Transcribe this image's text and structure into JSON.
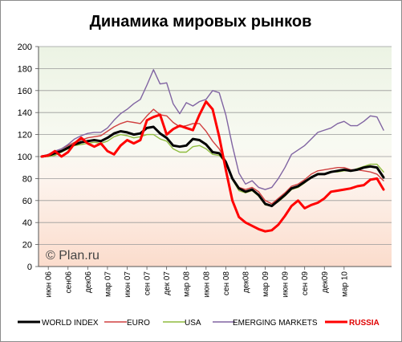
{
  "chart_data": {
    "type": "line",
    "title": "Динамика мировых рынков",
    "watermark": "© Plan.ru",
    "ylim": [
      0,
      200
    ],
    "yticks": [
      0,
      20,
      40,
      60,
      80,
      100,
      120,
      140,
      160,
      180,
      200
    ],
    "xtick_labels": [
      "июн 06",
      "сен06",
      "дек06",
      "мар 07",
      "июн 07",
      "сен 07",
      "дек 07",
      "мар 08",
      "июн 08",
      "сен 08",
      "дек08",
      "мар 09",
      "июн 09",
      "сен 09",
      "дек09",
      "мар 10"
    ],
    "x_start": "июн 06",
    "x_end": "апр 10",
    "series": [
      {
        "name": "WORLD INDEX",
        "color": "#000000",
        "bold": true,
        "values": [
          100,
          101,
          103,
          105,
          108,
          111,
          113,
          114,
          115,
          114,
          117,
          121,
          123,
          122,
          120,
          121,
          126,
          127,
          121,
          117,
          110,
          109,
          110,
          116,
          115,
          111,
          104,
          103,
          95,
          80,
          71,
          68,
          70,
          65,
          57,
          55,
          60,
          65,
          71,
          73,
          77,
          81,
          84,
          84,
          86,
          87,
          88,
          87,
          88,
          90,
          91,
          90,
          81
        ]
      },
      {
        "name": "EURO",
        "color": "#d04040",
        "bold": false,
        "values": [
          100,
          102,
          104,
          107,
          110,
          113,
          115,
          117,
          118,
          119,
          123,
          127,
          130,
          132,
          131,
          130,
          137,
          143,
          138,
          137,
          131,
          127,
          128,
          130,
          130,
          123,
          114,
          107,
          96,
          80,
          72,
          70,
          72,
          68,
          60,
          57,
          62,
          67,
          73,
          75,
          79,
          84,
          87,
          88,
          89,
          90,
          90,
          88,
          88,
          87,
          86,
          84,
          78
        ]
      },
      {
        "name": "USA",
        "color": "#8fbc3f",
        "bold": false,
        "values": [
          100,
          100,
          101,
          104,
          107,
          110,
          111,
          112,
          113,
          112,
          114,
          118,
          120,
          119,
          117,
          118,
          120,
          120,
          116,
          114,
          107,
          104,
          104,
          109,
          110,
          107,
          102,
          101,
          94,
          79,
          69,
          67,
          69,
          64,
          56,
          55,
          59,
          64,
          70,
          72,
          76,
          81,
          84,
          84,
          86,
          86,
          87,
          87,
          89,
          91,
          93,
          93,
          86
        ]
      },
      {
        "name": "EMERGING  MARKETS",
        "color": "#8064a2",
        "bold": false,
        "values": [
          100,
          102,
          105,
          107,
          111,
          116,
          119,
          121,
          122,
          122,
          126,
          133,
          139,
          143,
          148,
          152,
          165,
          179,
          166,
          167,
          148,
          139,
          149,
          146,
          150,
          152,
          160,
          158,
          138,
          110,
          85,
          75,
          78,
          72,
          70,
          72,
          80,
          90,
          102,
          106,
          110,
          116,
          122,
          124,
          126,
          130,
          132,
          128,
          128,
          132,
          137,
          136,
          124
        ]
      },
      {
        "name": "RUSSIA",
        "color": "#ff0000",
        "bold": true,
        "values": [
          100,
          101,
          105,
          100,
          104,
          112,
          117,
          112,
          109,
          112,
          105,
          102,
          110,
          115,
          112,
          115,
          133,
          136,
          138,
          120,
          125,
          128,
          126,
          124,
          138,
          150,
          143,
          118,
          88,
          60,
          45,
          40,
          37,
          34,
          32,
          33,
          38,
          46,
          55,
          60,
          53,
          56,
          58,
          62,
          68,
          69,
          70,
          71,
          73,
          74,
          79,
          80,
          70
        ]
      }
    ]
  }
}
